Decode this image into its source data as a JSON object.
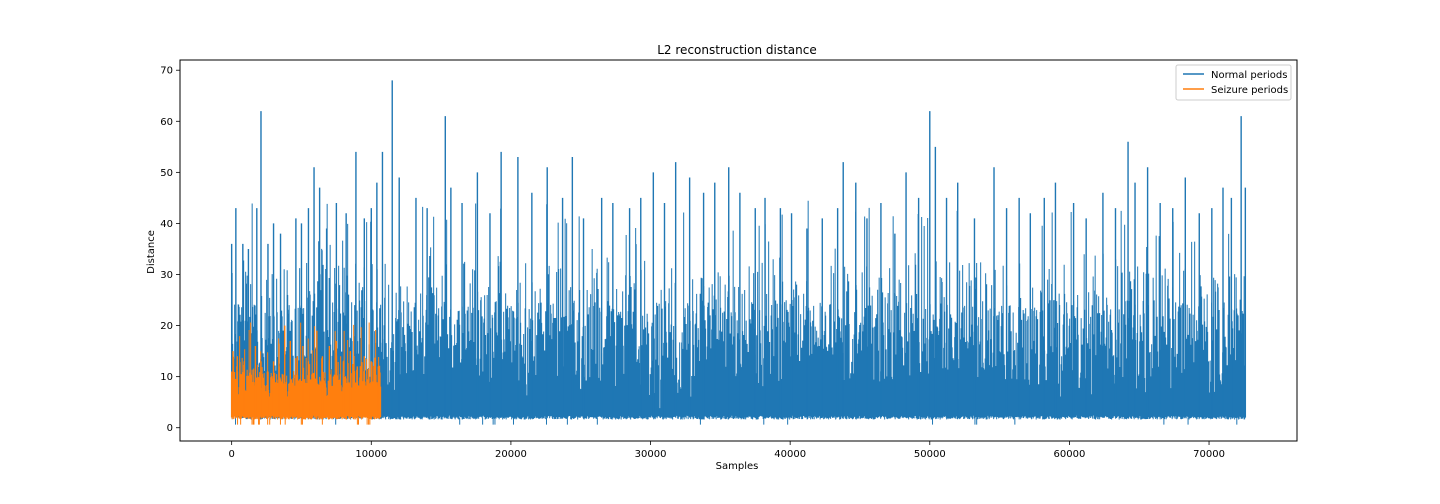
{
  "chart_data": {
    "type": "line",
    "title": "L2 reconstruction distance",
    "xlabel": "Samples",
    "ylabel": "Distance",
    "xlim": [
      -3700,
      76300
    ],
    "ylim": [
      -2.6,
      72.0
    ],
    "xticks": [
      0,
      10000,
      20000,
      30000,
      40000,
      50000,
      60000,
      70000
    ],
    "yticks": [
      0,
      10,
      20,
      30,
      40,
      50,
      60,
      70
    ],
    "grid": false,
    "legend_position": "top-right",
    "series": [
      {
        "name": "Normal periods",
        "color": "#1f77b4",
        "x_range": [
          0,
          72600
        ],
        "baseline": 2,
        "typical_max": 25,
        "peaks": [
          [
            0,
            36
          ],
          [
            300,
            43
          ],
          [
            800,
            36
          ],
          [
            1200,
            35
          ],
          [
            1800,
            43
          ],
          [
            2100,
            62
          ],
          [
            2600,
            36
          ],
          [
            3000,
            40
          ],
          [
            3500,
            38
          ],
          [
            4000,
            26
          ],
          [
            4600,
            41
          ],
          [
            5000,
            40
          ],
          [
            5500,
            43
          ],
          [
            5900,
            51
          ],
          [
            6300,
            47
          ],
          [
            6800,
            39
          ],
          [
            7500,
            44
          ],
          [
            8200,
            42
          ],
          [
            8900,
            54
          ],
          [
            9500,
            41
          ],
          [
            10000,
            43
          ],
          [
            10400,
            48
          ],
          [
            10800,
            54
          ],
          [
            11500,
            68
          ],
          [
            12000,
            49
          ],
          [
            13200,
            45
          ],
          [
            14000,
            43
          ],
          [
            15300,
            61
          ],
          [
            15700,
            47
          ],
          [
            16500,
            44
          ],
          [
            17600,
            50
          ],
          [
            18500,
            42
          ],
          [
            19300,
            54
          ],
          [
            20500,
            53
          ],
          [
            21500,
            46
          ],
          [
            22600,
            51
          ],
          [
            23700,
            45
          ],
          [
            24400,
            53
          ],
          [
            25200,
            41
          ],
          [
            26500,
            45
          ],
          [
            27300,
            44
          ],
          [
            28500,
            43
          ],
          [
            29300,
            45
          ],
          [
            30200,
            50
          ],
          [
            31000,
            44
          ],
          [
            31800,
            52
          ],
          [
            32800,
            49
          ],
          [
            33800,
            46
          ],
          [
            34600,
            48
          ],
          [
            35600,
            51
          ],
          [
            36400,
            46
          ],
          [
            37500,
            43
          ],
          [
            38200,
            45
          ],
          [
            39300,
            43
          ],
          [
            40100,
            42
          ],
          [
            41200,
            39
          ],
          [
            42300,
            41
          ],
          [
            43400,
            43
          ],
          [
            43800,
            52
          ],
          [
            44700,
            48
          ],
          [
            45500,
            41
          ],
          [
            46500,
            44
          ],
          [
            47500,
            38
          ],
          [
            48300,
            50
          ],
          [
            49200,
            45
          ],
          [
            50000,
            62
          ],
          [
            50400,
            55
          ],
          [
            51200,
            45
          ],
          [
            52000,
            48
          ],
          [
            53200,
            41
          ],
          [
            54600,
            51
          ],
          [
            55500,
            43
          ],
          [
            56400,
            45
          ],
          [
            57200,
            42
          ],
          [
            58200,
            45
          ],
          [
            59000,
            48
          ],
          [
            60300,
            44
          ],
          [
            61200,
            41
          ],
          [
            62400,
            46
          ],
          [
            63300,
            43
          ],
          [
            64200,
            56
          ],
          [
            64700,
            48
          ],
          [
            65600,
            51
          ],
          [
            66500,
            44
          ],
          [
            67400,
            43
          ],
          [
            68300,
            49
          ],
          [
            69300,
            42
          ],
          [
            70200,
            43
          ],
          [
            71000,
            47
          ],
          [
            71600,
            45
          ],
          [
            72300,
            61
          ],
          [
            72600,
            47
          ]
        ]
      },
      {
        "name": "Seizure periods",
        "color": "#ff7f0e",
        "x_range": [
          0,
          10700
        ],
        "baseline": 2,
        "typical_max": 11,
        "peaks": [
          [
            0,
            11
          ],
          [
            100,
            15
          ],
          [
            400,
            14
          ],
          [
            900,
            13
          ],
          [
            1300,
            10
          ],
          [
            1700,
            16
          ],
          [
            2100,
            13
          ],
          [
            2600,
            11
          ],
          [
            3000,
            13
          ],
          [
            3400,
            12
          ],
          [
            3800,
            20
          ],
          [
            4200,
            17
          ],
          [
            4700,
            14
          ],
          [
            5100,
            16
          ],
          [
            5500,
            13
          ],
          [
            6100,
            19
          ],
          [
            6500,
            14
          ],
          [
            7000,
            16
          ],
          [
            7500,
            17
          ],
          [
            8000,
            13
          ],
          [
            8500,
            15
          ],
          [
            9000,
            12
          ],
          [
            9500,
            14
          ],
          [
            10000,
            13
          ],
          [
            10500,
            12
          ]
        ]
      }
    ]
  }
}
